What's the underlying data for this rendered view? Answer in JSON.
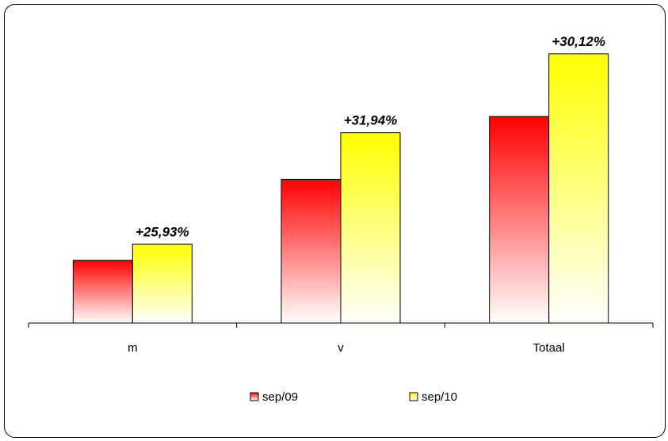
{
  "chart_data": {
    "type": "bar",
    "categories": [
      "m",
      "v",
      "Totaal"
    ],
    "series": [
      {
        "name": "sep/09",
        "values": [
          31,
          71,
          102
        ],
        "color_top": "#ff0000",
        "color_bottom": "#ffffff"
      },
      {
        "name": "sep/10",
        "values": [
          39,
          94,
          133
        ],
        "color_top": "#ffff00",
        "color_bottom": "#ffffff"
      }
    ],
    "data_labels": [
      "+25,93%",
      "+31,94%",
      "+30,12%"
    ],
    "ylim": [
      0,
      140
    ],
    "grid": false,
    "legend": "bottom-center",
    "title": "",
    "xlabel": "",
    "ylabel": ""
  }
}
